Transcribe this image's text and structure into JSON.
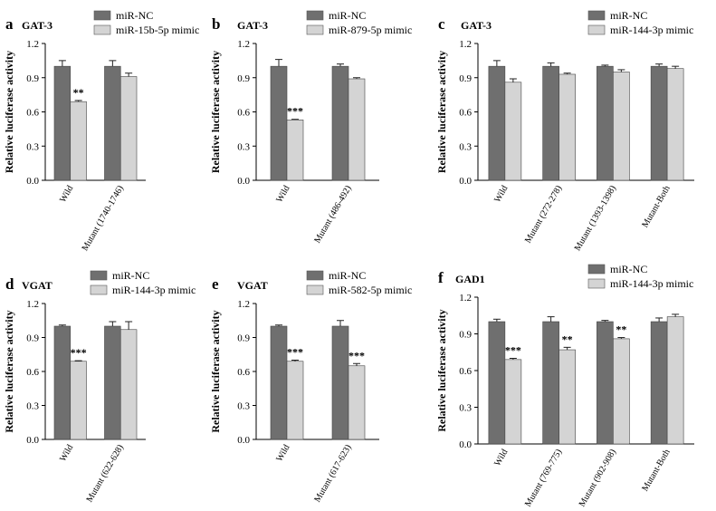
{
  "colors": {
    "nc": "#6f6f6f",
    "mimic": "#d4d4d4",
    "axis": "#000000"
  },
  "yticks": [
    "0.0",
    "0.3",
    "0.6",
    "0.9",
    "1.2"
  ],
  "chart_data": [
    {
      "panel": "a",
      "type": "bar",
      "title": "GAT-3",
      "ylabel": "Relative luciferase activity",
      "ylim": [
        0,
        1.2
      ],
      "categories": [
        "Wild",
        "Mutant (1740-1746)"
      ],
      "series": [
        {
          "name": "miR-NC",
          "values": [
            1.0,
            1.0
          ],
          "errors": [
            0.05,
            0.05
          ]
        },
        {
          "name": "miR-15b-5p mimic",
          "values": [
            0.69,
            0.91
          ],
          "errors": [
            0.01,
            0.03
          ]
        }
      ],
      "annotations": [
        "**",
        ""
      ]
    },
    {
      "panel": "b",
      "type": "bar",
      "title": "GAT-3",
      "ylabel": "Relative luciferase activity",
      "ylim": [
        0,
        1.2
      ],
      "categories": [
        "Wild",
        "Mutant (486-492)"
      ],
      "series": [
        {
          "name": "miR-NC",
          "values": [
            1.0,
            1.0
          ],
          "errors": [
            0.06,
            0.02
          ]
        },
        {
          "name": "miR-879-5p mimic",
          "values": [
            0.53,
            0.89
          ],
          "errors": [
            0.005,
            0.01
          ]
        }
      ],
      "annotations": [
        "***",
        ""
      ]
    },
    {
      "panel": "c",
      "type": "bar",
      "title": "GAT-3",
      "ylabel": "Relative luciferase activity",
      "ylim": [
        0,
        1.2
      ],
      "categories": [
        "Wild",
        "Mutant (272-278)",
        "Mutant (1393-1398)",
        "Mutant-Both"
      ],
      "series": [
        {
          "name": "miR-NC",
          "values": [
            1.0,
            1.0,
            1.0,
            1.0
          ],
          "errors": [
            0.05,
            0.03,
            0.01,
            0.02
          ]
        },
        {
          "name": "miR-144-3p mimic",
          "values": [
            0.86,
            0.93,
            0.95,
            0.98
          ],
          "errors": [
            0.03,
            0.01,
            0.02,
            0.02
          ]
        }
      ],
      "annotations": [
        "",
        "",
        "",
        ""
      ]
    },
    {
      "panel": "d",
      "type": "bar",
      "title": "VGAT",
      "ylabel": "Relative luciferase activity",
      "ylim": [
        0,
        1.2
      ],
      "categories": [
        "Wild",
        "Mutant (622-628)"
      ],
      "series": [
        {
          "name": "miR-NC",
          "values": [
            1.0,
            1.0
          ],
          "errors": [
            0.01,
            0.04
          ]
        },
        {
          "name": "miR-144-3p mimic",
          "values": [
            0.69,
            0.97
          ],
          "errors": [
            0.005,
            0.07
          ]
        }
      ],
      "annotations": [
        "***",
        ""
      ]
    },
    {
      "panel": "e",
      "type": "bar",
      "title": "VGAT",
      "ylabel": "Relative luciferase activity",
      "ylim": [
        0,
        1.2
      ],
      "categories": [
        "Wild",
        "Mutant (617-623)"
      ],
      "series": [
        {
          "name": "miR-NC",
          "values": [
            1.0,
            1.0
          ],
          "errors": [
            0.01,
            0.05
          ]
        },
        {
          "name": "miR-582-5p mimic",
          "values": [
            0.69,
            0.65
          ],
          "errors": [
            0.01,
            0.02
          ]
        }
      ],
      "annotations": [
        "***",
        "***"
      ]
    },
    {
      "panel": "f",
      "type": "bar",
      "title": "GAD1",
      "ylabel": "Relative luciferase activity",
      "ylim": [
        0,
        1.2
      ],
      "categories": [
        "Wild",
        "Mutant (769-775)",
        "Mutant (902-908)",
        "Mutant-Both"
      ],
      "series": [
        {
          "name": "miR-NC",
          "values": [
            1.0,
            1.0,
            1.0,
            1.0
          ],
          "errors": [
            0.02,
            0.04,
            0.01,
            0.03
          ]
        },
        {
          "name": "miR-144-3p mimic",
          "values": [
            0.69,
            0.77,
            0.86,
            1.04
          ],
          "errors": [
            0.01,
            0.02,
            0.01,
            0.02
          ]
        }
      ],
      "annotations": [
        "***",
        "**",
        "**",
        ""
      ]
    }
  ]
}
